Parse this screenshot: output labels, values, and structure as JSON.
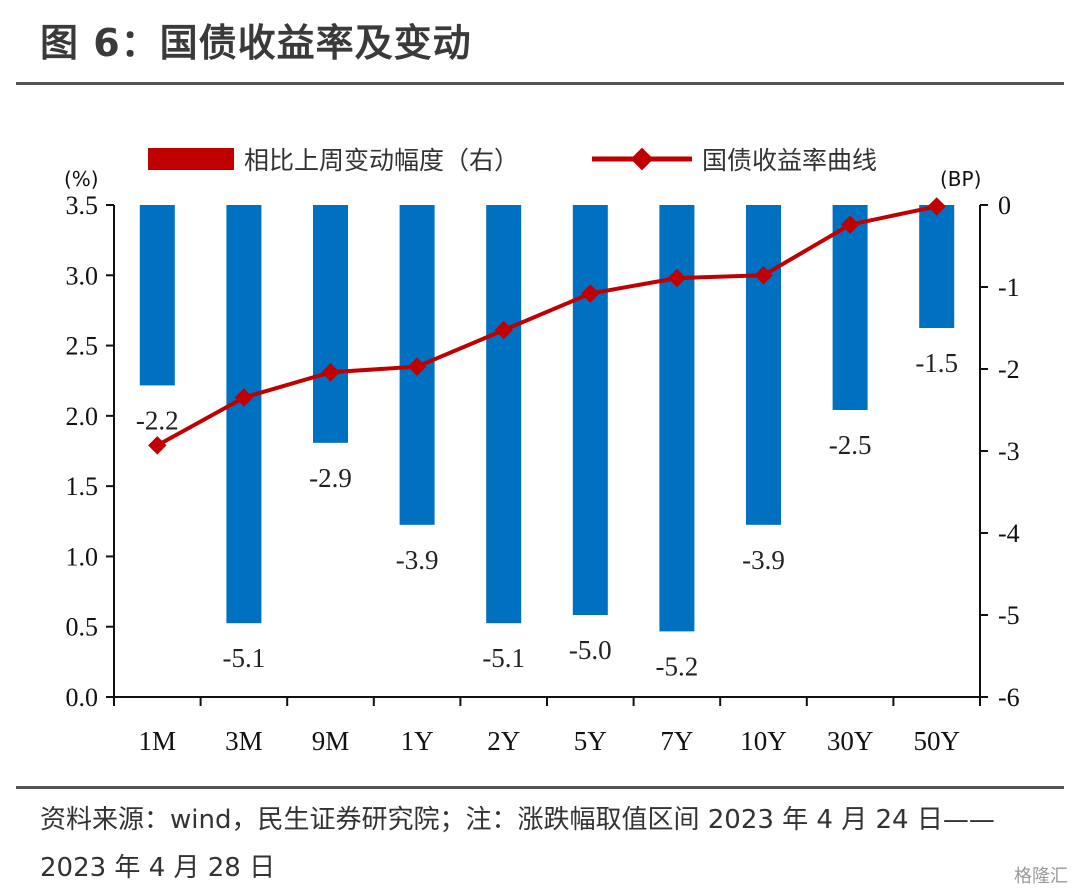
{
  "header": {
    "title": "图 6：国债收益率及变动"
  },
  "footer": {
    "source": "资料来源：wind，民生证券研究院；注：涨跌幅取值区间 2023 年 4 月 24 日——2023 年 4 月 28 日",
    "watermark": "格隆汇"
  },
  "colors": {
    "bar": "#0070C0",
    "line": "#C00000",
    "axis": "#111111",
    "rule": "#555555"
  },
  "chart_data": {
    "type": "bar+line",
    "title": "图 6：国债收益率及变动",
    "categories": [
      "1M",
      "3M",
      "9M",
      "1Y",
      "2Y",
      "5Y",
      "7Y",
      "10Y",
      "30Y",
      "50Y"
    ],
    "series": [
      {
        "name": "相比上周变动幅度（右）",
        "type": "bar",
        "axis": "right",
        "values": [
          -2.2,
          -5.1,
          -2.9,
          -3.9,
          -5.1,
          -5.0,
          -5.2,
          -3.9,
          -2.5,
          -1.5
        ],
        "labels": [
          "-2.2",
          "-5.1",
          "-2.9",
          "-3.9",
          "-5.1",
          "-5.0",
          "-5.2",
          "-3.9",
          "-2.5",
          "-1.5"
        ]
      },
      {
        "name": "国债收益率曲线",
        "type": "line",
        "axis": "left",
        "values": [
          1.79,
          2.13,
          2.31,
          2.35,
          2.61,
          2.87,
          2.98,
          3.0,
          3.36,
          3.49
        ]
      }
    ],
    "y_left": {
      "unit": "(%)",
      "range": [
        0,
        3.5
      ],
      "ticks": [
        0,
        0.5,
        1.0,
        1.5,
        2.0,
        2.5,
        3.0,
        3.5
      ],
      "tick_labels": [
        "0.0",
        "0.5",
        "1.0",
        "1.5",
        "2.0",
        "2.5",
        "3.0",
        "3.5"
      ]
    },
    "y_right": {
      "unit": "(BP)",
      "range": [
        -6,
        0
      ],
      "ticks": [
        0,
        -1,
        -2,
        -3,
        -4,
        -5,
        -6
      ],
      "tick_labels": [
        "0",
        "-1",
        "-2",
        "-3",
        "-4",
        "-5",
        "-6"
      ]
    },
    "legend": {
      "position": "top"
    },
    "grid": false
  }
}
